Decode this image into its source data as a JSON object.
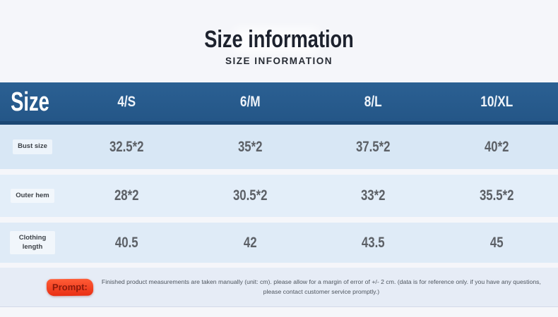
{
  "header": {
    "title": "Size information",
    "subtitle": "SIZE INFORMATION"
  },
  "table": {
    "corner_label": "Size",
    "columns": [
      "4/S",
      "6/M",
      "8/L",
      "10/XL"
    ],
    "rows": [
      {
        "label": "Bust size",
        "values": [
          "32.5*2",
          "35*2",
          "37.5*2",
          "40*2"
        ]
      },
      {
        "label": "Outer hem",
        "values": [
          "28*2",
          "30.5*2",
          "33*2",
          "35.5*2"
        ]
      },
      {
        "label": "Clothing length",
        "values": [
          "40.5",
          "42",
          "43.5",
          "45"
        ]
      }
    ]
  },
  "footer": {
    "prompt_label": "Prompt:",
    "note_line1": "Finished product measurements are taken manually (unit: cm). please allow for a margin of error of +/- 2 cm. (data is for reference only. if you have any questions,",
    "note_line2": "please contact customer service promptly.)"
  },
  "colors": {
    "page_bg": "#f5f6fa",
    "header_bg": "#265a8c",
    "header_bg_dark": "#1b4773",
    "row1_bg": "#d8e7f5",
    "row2_bg": "#e3eef9",
    "row3_bg": "#dfebf7",
    "footer_bg": "#e6ecf6",
    "value_color": "#5c6066",
    "title_color": "#1d222e",
    "prompt_red": "#f03a21",
    "prompt_text_red": "#8c1a0b"
  }
}
